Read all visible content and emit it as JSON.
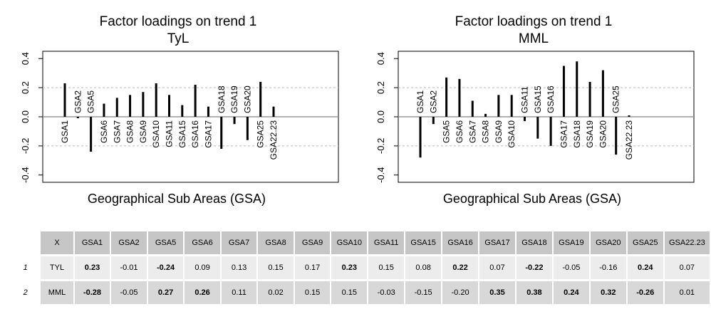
{
  "chart_data": [
    {
      "type": "bar",
      "title": "Factor loadings on trend 1",
      "subtitle": "TyL",
      "xlabel": "Geographical Sub Areas (GSA)",
      "ylabel": "",
      "ylim": [
        -0.45,
        0.45
      ],
      "yticks": [
        -0.4,
        -0.2,
        0.0,
        0.2,
        0.4
      ],
      "ytick_labels": [
        "-0.4",
        "-0.2",
        "0.0",
        "0.2",
        "0.4"
      ],
      "grid": "dashed at 0.2 and -0.2",
      "categories": [
        "GSA1",
        "GSA2",
        "GSA5",
        "GSA6",
        "GSA7",
        "GSA8",
        "GSA9",
        "GSA10",
        "GSA11",
        "GSA15",
        "GSA16",
        "GSA17",
        "GSA18",
        "GSA19",
        "GSA20",
        "GSA25",
        "GSA22.23"
      ],
      "values": [
        0.23,
        -0.01,
        -0.24,
        0.09,
        0.13,
        0.15,
        0.17,
        0.23,
        0.15,
        0.08,
        0.22,
        0.07,
        -0.22,
        -0.05,
        -0.16,
        0.24,
        0.07
      ]
    },
    {
      "type": "bar",
      "title": "Factor loadings on trend 1",
      "subtitle": "MML",
      "xlabel": "Geographical Sub Areas (GSA)",
      "ylabel": "",
      "ylim": [
        -0.45,
        0.45
      ],
      "yticks": [
        -0.4,
        -0.2,
        0.0,
        0.2,
        0.4
      ],
      "ytick_labels": [
        "-0.4",
        "-0.2",
        "0.0",
        "0.2",
        "0.4"
      ],
      "grid": "dashed at 0.2 and -0.2",
      "categories": [
        "GSA1",
        "GSA2",
        "GSA5",
        "GSA6",
        "GSA7",
        "GSA8",
        "GSA9",
        "GSA10",
        "GSA11",
        "GSA15",
        "GSA16",
        "GSA17",
        "GSA18",
        "GSA19",
        "GSA20",
        "GSA25",
        "GSA22.23"
      ],
      "values": [
        -0.28,
        -0.05,
        0.27,
        0.26,
        0.11,
        0.02,
        0.15,
        0.15,
        -0.03,
        -0.15,
        -0.2,
        0.35,
        0.38,
        0.24,
        0.32,
        -0.26,
        0.01
      ]
    }
  ],
  "table": {
    "corner": "X",
    "columns": [
      "GSA1",
      "GSA2",
      "GSA5",
      "GSA6",
      "GSA7",
      "GSA8",
      "GSA9",
      "GSA10",
      "GSA11",
      "GSA15",
      "GSA16",
      "GSA17",
      "GSA18",
      "GSA19",
      "GSA20",
      "GSA25",
      "GSA22.23"
    ],
    "rows": [
      {
        "index": "1",
        "name": "TYL",
        "values": [
          "0.23",
          "-0.01",
          "-0.24",
          "0.09",
          "0.13",
          "0.15",
          "0.17",
          "0.23",
          "0.15",
          "0.08",
          "0.22",
          "0.07",
          "-0.22",
          "-0.05",
          "-0.16",
          "0.24",
          "0.07"
        ],
        "bold": [
          true,
          false,
          true,
          false,
          false,
          false,
          false,
          true,
          false,
          false,
          true,
          false,
          true,
          false,
          false,
          true,
          false
        ]
      },
      {
        "index": "2",
        "name": "MML",
        "values": [
          "-0.28",
          "-0.05",
          "0.27",
          "0.26",
          "0.11",
          "0.02",
          "0.15",
          "0.15",
          "-0.03",
          "-0.15",
          "-0.20",
          "0.35",
          "0.38",
          "0.24",
          "0.32",
          "-0.26",
          "0.01"
        ],
        "bold": [
          true,
          false,
          true,
          true,
          false,
          false,
          false,
          false,
          false,
          false,
          false,
          true,
          true,
          true,
          true,
          true,
          false
        ]
      }
    ],
    "colors": {
      "header": "#c6c6c6",
      "row1": "#ececec",
      "row2": "#d8d8d8"
    }
  }
}
